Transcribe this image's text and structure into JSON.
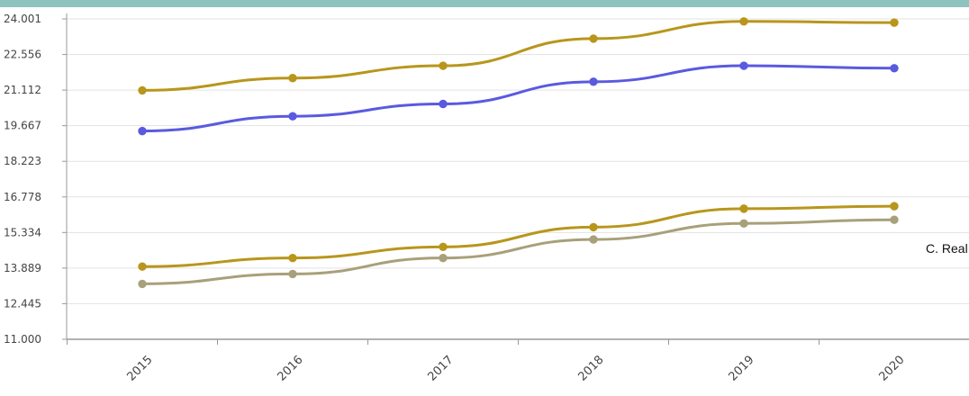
{
  "side_label": "C. Real",
  "chart_data": {
    "type": "line",
    "title": "",
    "xlabel": "",
    "ylabel": "",
    "x": [
      "2015",
      "2016",
      "2017",
      "2018",
      "2019",
      "2020"
    ],
    "y_ticks": [
      "11.000",
      "12.445",
      "13.889",
      "15.334",
      "16.778",
      "18.223",
      "19.667",
      "21.112",
      "22.556",
      "24.001"
    ],
    "ylim": [
      11.0,
      24.001
    ],
    "grid": true,
    "series": [
      {
        "color": "#b8961c",
        "values": [
          21.1,
          21.6,
          22.1,
          23.2,
          23.9,
          23.85
        ]
      },
      {
        "color": "#5a5ae0",
        "values": [
          19.45,
          20.05,
          20.55,
          21.45,
          22.1,
          22.0
        ]
      },
      {
        "color": "#b8961c",
        "values": [
          13.95,
          14.3,
          14.75,
          15.55,
          16.3,
          16.4
        ]
      },
      {
        "color": "#a8a07a",
        "values": [
          13.25,
          13.65,
          14.3,
          15.05,
          15.7,
          15.85
        ]
      }
    ]
  }
}
